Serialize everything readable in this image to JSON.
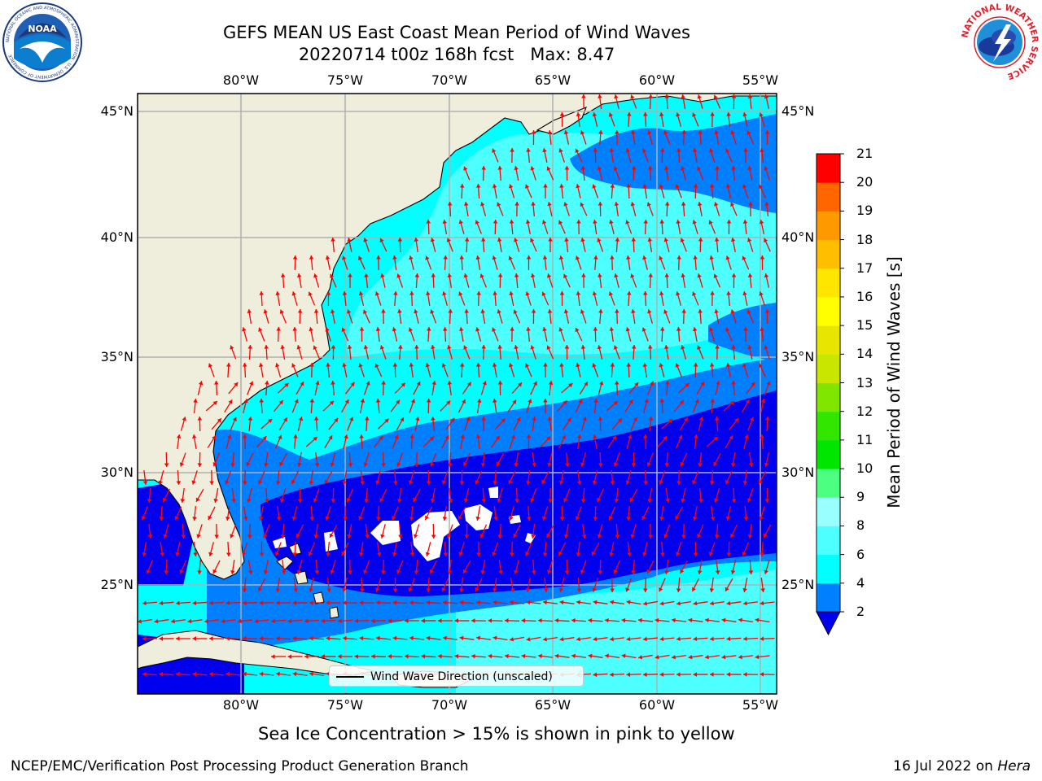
{
  "title": {
    "line1": "GEFS MEAN US East Coast Mean Period of Wind Waves",
    "run": "20220714 t00z 168h fcst",
    "max": "Max: 8.47"
  },
  "logos": {
    "left": "NOAA",
    "left_ring": "NATIONAL OCEANIC AND ATMOSPHERIC ADMINISTRATION · U.S. DEPARTMENT OF COMMERCE",
    "right_ring": "NATIONAL WEATHER SERVICE"
  },
  "map": {
    "lon_labels": [
      "80°W",
      "75°W",
      "70°W",
      "65°W",
      "60°W",
      "55°W"
    ],
    "lat_labels": [
      "45°N",
      "40°N",
      "35°N",
      "30°N",
      "25°N"
    ],
    "colors": {
      "land": "#efeedc",
      "band_2_4": "#0080ff",
      "band_4_6": "#00ffff",
      "band_6_8": "#4dffff",
      "below_2": "#0000ee",
      "arrow": "#ff0000"
    },
    "legend_text": "Wind Wave Direction (unscaled)"
  },
  "colorbar": {
    "label": "Mean Period of Wind Waves [s]",
    "ticks": [
      "2",
      "4",
      "6",
      "8",
      "9",
      "10",
      "11",
      "12",
      "13",
      "14",
      "15",
      "16",
      "17",
      "18",
      "19",
      "20",
      "21"
    ],
    "colors": [
      "#0080ff",
      "#00ffff",
      "#4dffff",
      "#99ffff",
      "#4dff80",
      "#00e600",
      "#33e600",
      "#80e600",
      "#c8e600",
      "#e6e600",
      "#ffff00",
      "#ffe600",
      "#ffbf00",
      "#ff9900",
      "#ff6600",
      "#ff3300"
    ],
    "under_color": "#0000ee",
    "top_color": "#ff0000"
  },
  "footer": {
    "sea_ice": "Sea Ice Concentration > 15% is shown in pink to yellow",
    "branch": "NCEP/EMC/Verification Post Processing Product Generation Branch",
    "date": "16 Jul 2022 on",
    "machine": "Hera"
  }
}
